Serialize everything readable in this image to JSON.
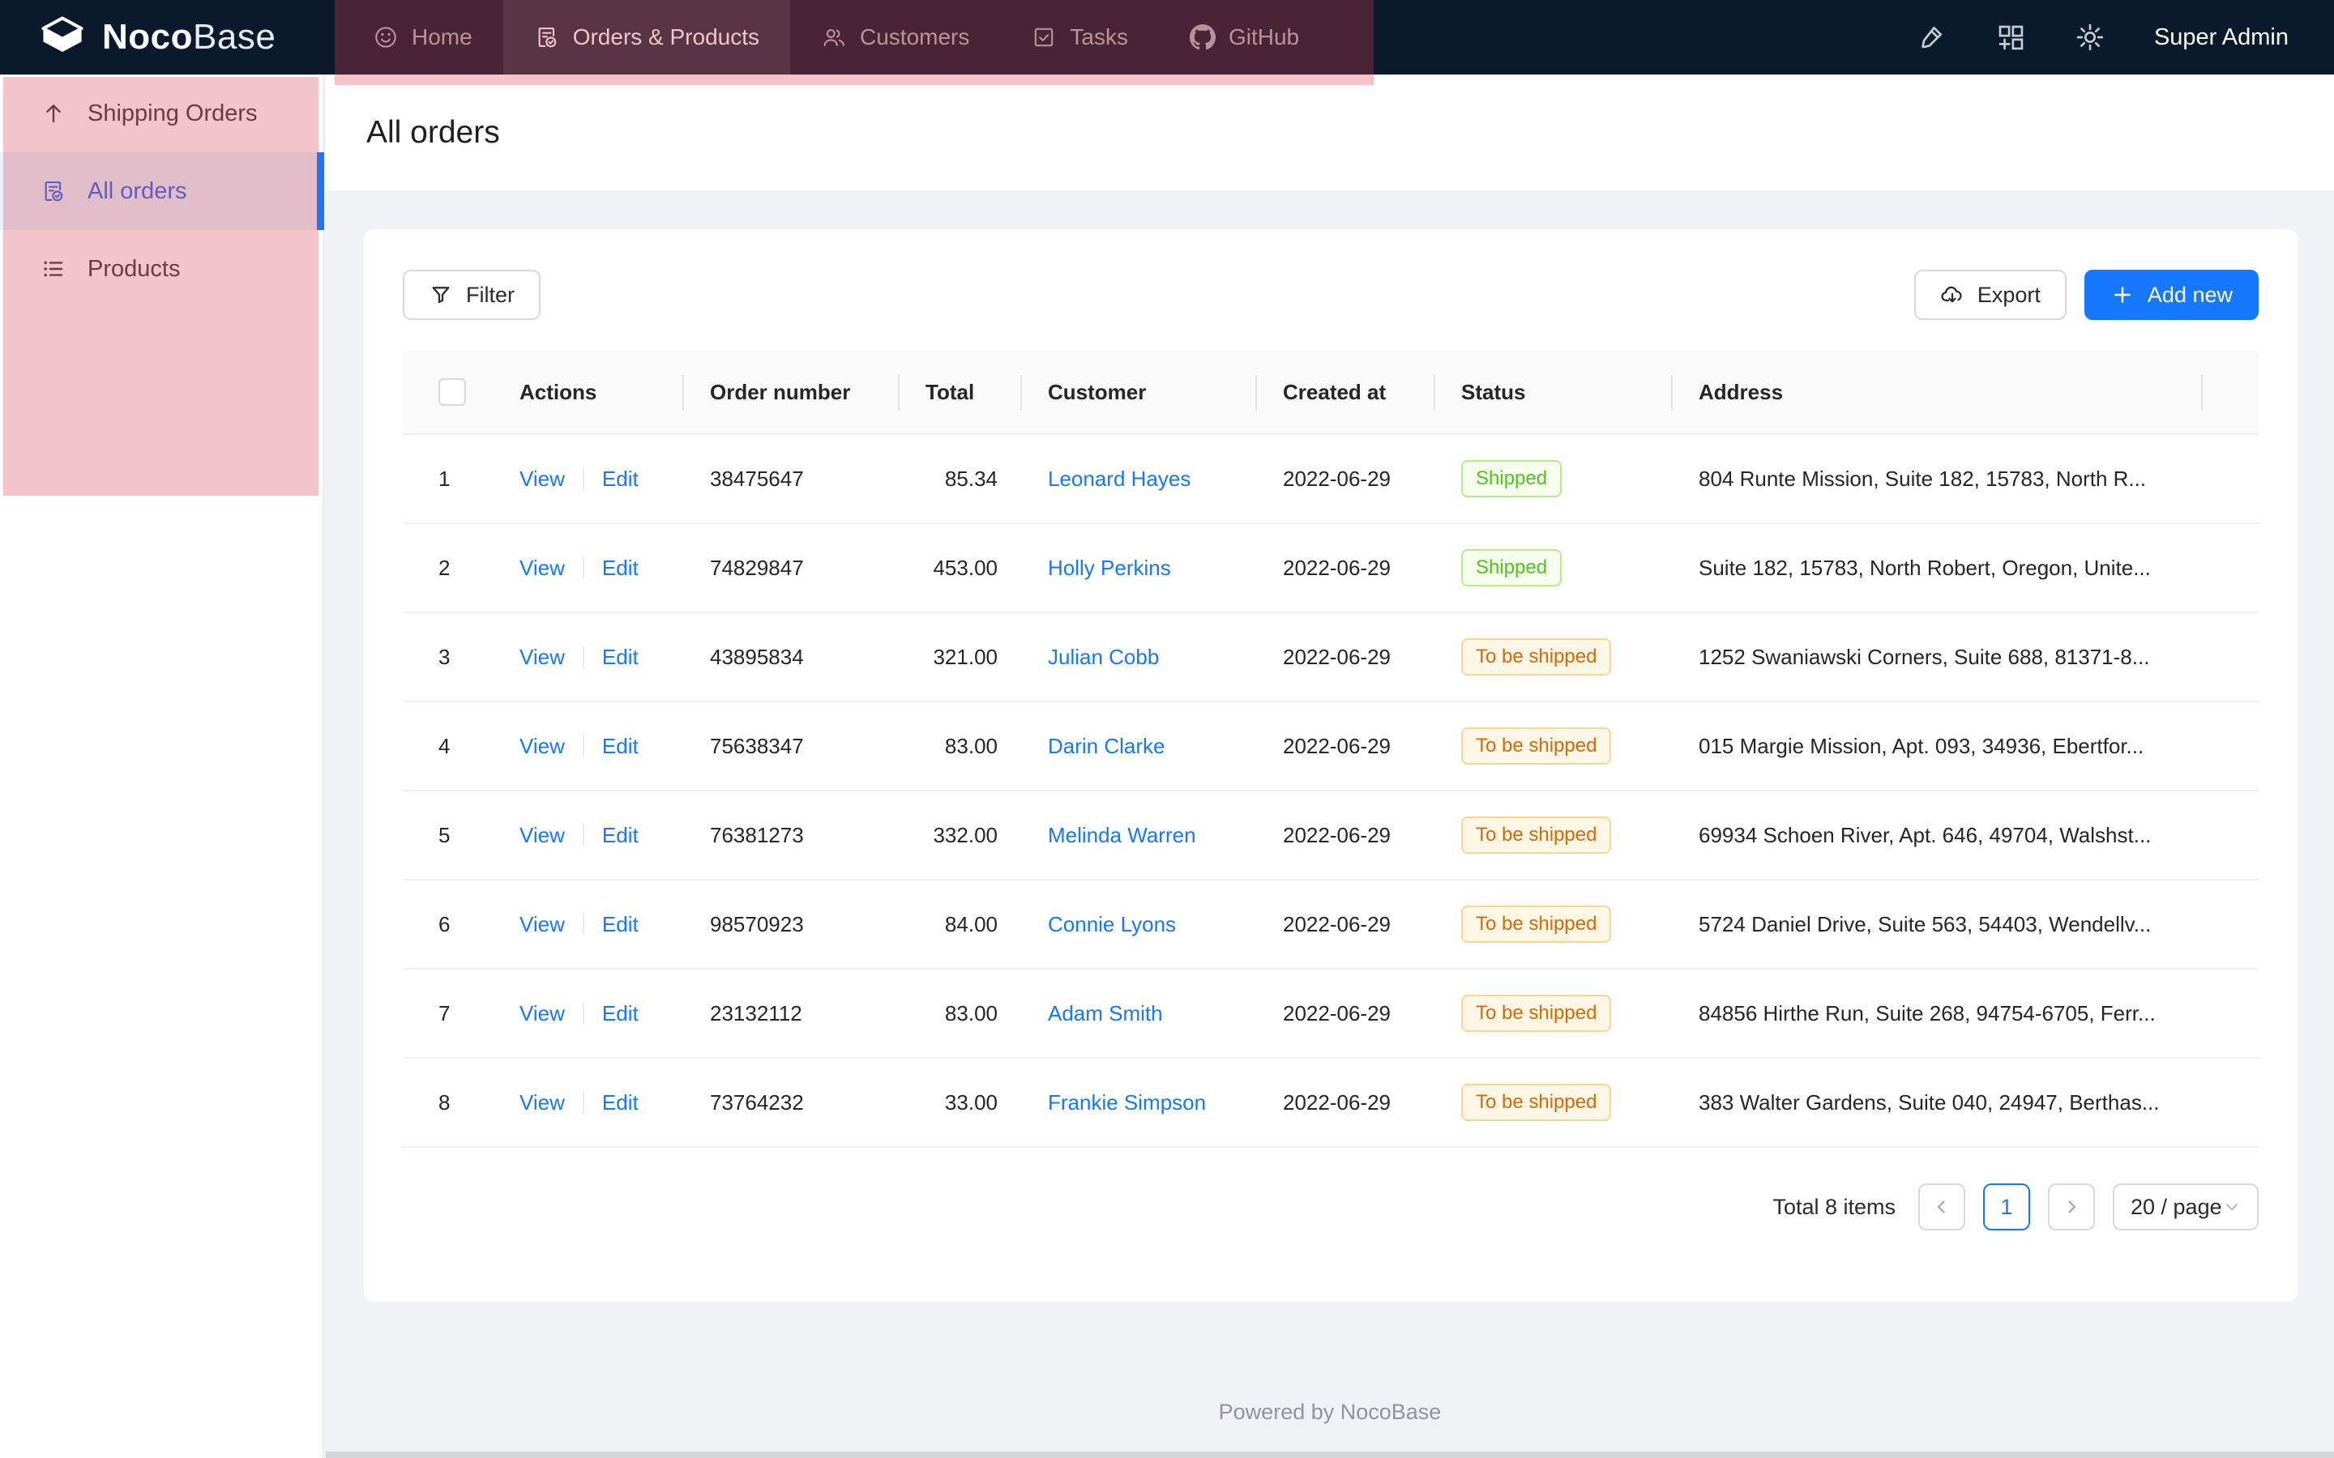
{
  "nav": {
    "logo": {
      "bold": "Noco",
      "light": "Base"
    },
    "tabs": [
      {
        "label": "Home",
        "icon": "smiley-icon",
        "active": false
      },
      {
        "label": "Orders & Products",
        "icon": "file-done-icon",
        "active": true
      },
      {
        "label": "Customers",
        "icon": "team-icon",
        "active": false
      },
      {
        "label": "Tasks",
        "icon": "task-check-icon",
        "active": false
      },
      {
        "label": "GitHub",
        "icon": "github-icon",
        "active": false
      }
    ],
    "right_icons": [
      {
        "name": "highlighter-icon"
      },
      {
        "name": "blocks-add-icon"
      },
      {
        "name": "gear-icon"
      }
    ],
    "user": "Super Admin"
  },
  "sidebar": {
    "items": [
      {
        "label": "Shipping Orders",
        "icon": "arrow-up-icon",
        "active": false
      },
      {
        "label": "All orders",
        "icon": "file-done-icon",
        "active": true
      },
      {
        "label": "Products",
        "icon": "list-icon",
        "active": false
      }
    ]
  },
  "page": {
    "title": "All orders"
  },
  "toolbar": {
    "filter": "Filter",
    "export": "Export",
    "add_new": "Add new"
  },
  "table": {
    "columns": [
      "",
      "Actions",
      "Order number",
      "Total",
      "Customer",
      "Created at",
      "Status",
      "Address",
      ""
    ],
    "actions": {
      "view": "View",
      "edit": "Edit"
    },
    "rows": [
      {
        "index": 1,
        "order_number": "38475647",
        "total": "85.34",
        "customer": "Leonard Hayes",
        "created_at": "2022-06-29",
        "status": {
          "label": "Shipped",
          "type": "success"
        },
        "address": "804 Runte Mission, Suite 182, 15783, North R..."
      },
      {
        "index": 2,
        "order_number": "74829847",
        "total": "453.00",
        "customer": "Holly Perkins",
        "created_at": "2022-06-29",
        "status": {
          "label": "Shipped",
          "type": "success"
        },
        "address": "Suite 182, 15783, North Robert, Oregon, Unite..."
      },
      {
        "index": 3,
        "order_number": "43895834",
        "total": "321.00",
        "customer": "Julian Cobb",
        "created_at": "2022-06-29",
        "status": {
          "label": "To be shipped",
          "type": "warning"
        },
        "address": "1252 Swaniawski Corners, Suite 688, 81371-8..."
      },
      {
        "index": 4,
        "order_number": "75638347",
        "total": "83.00",
        "customer": "Darin Clarke",
        "created_at": "2022-06-29",
        "status": {
          "label": "To be shipped",
          "type": "warning"
        },
        "address": "015 Margie Mission, Apt. 093, 34936, Ebertfor..."
      },
      {
        "index": 5,
        "order_number": "76381273",
        "total": "332.00",
        "customer": "Melinda Warren",
        "created_at": "2022-06-29",
        "status": {
          "label": "To be shipped",
          "type": "warning"
        },
        "address": "69934 Schoen River, Apt. 646, 49704, Walshst..."
      },
      {
        "index": 6,
        "order_number": "98570923",
        "total": "84.00",
        "customer": "Connie Lyons",
        "created_at": "2022-06-29",
        "status": {
          "label": "To be shipped",
          "type": "warning"
        },
        "address": "5724 Daniel Drive, Suite 563, 54403, Wendellv..."
      },
      {
        "index": 7,
        "order_number": "23132112",
        "total": "83.00",
        "customer": "Adam Smith",
        "created_at": "2022-06-29",
        "status": {
          "label": "To be shipped",
          "type": "warning"
        },
        "address": "84856 Hirthe Run, Suite 268, 94754-6705, Ferr..."
      },
      {
        "index": 8,
        "order_number": "73764232",
        "total": "33.00",
        "customer": "Frankie Simpson",
        "created_at": "2022-06-29",
        "status": {
          "label": "To be shipped",
          "type": "warning"
        },
        "address": "383 Walter Gardens, Suite 040, 24947, Berthas..."
      }
    ]
  },
  "pagination": {
    "total_text": "Total 8 items",
    "prev": "chevron-left-icon",
    "page": "1",
    "next": "chevron-right-icon",
    "page_size": "20 / page"
  },
  "footer": {
    "text": "Powered by NocoBase"
  },
  "colors": {
    "primary": "#1677ff",
    "navbar_bg": "#0a1a2c",
    "highlight_overlay": "rgba(214,62,80,0.30)",
    "selected_menu_bg": "#e6f4ff",
    "tag_success_text": "#52c41a",
    "tag_success_bg": "#f6ffed",
    "tag_success_border": "#b7eb8f",
    "tag_warning_text": "#d46b08",
    "tag_warning_bg": "#fff7e6",
    "tag_warning_border": "#ffd591",
    "content_bg": "#f0f2f5"
  }
}
